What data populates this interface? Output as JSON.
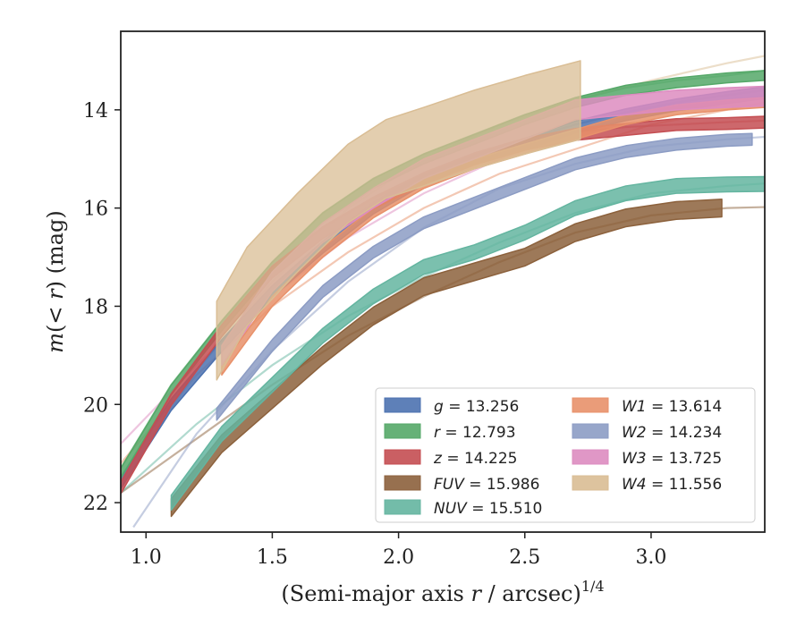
{
  "chart_data": {
    "type": "line",
    "xlabel_main": "(Semi-major axis ",
    "xlabel_var": "r",
    "xlabel_tail": " / arcsec)",
    "xlabel_sup": "1/4",
    "ylabel_m": "m",
    "ylabel_paren": "(< ",
    "ylabel_r": "r",
    "ylabel_tail": ") (mag)",
    "xlim": [
      0.9,
      3.45
    ],
    "ylim": [
      22.6,
      12.4
    ],
    "y_inverted": true,
    "x_ticks": [
      1.0,
      1.5,
      2.0,
      2.5,
      3.0
    ],
    "x_tick_labels": [
      "1.0",
      "1.5",
      "2.0",
      "2.5",
      "3.0"
    ],
    "y_ticks": [
      14,
      16,
      18,
      20,
      22
    ],
    "y_tick_labels": [
      "14",
      "16",
      "18",
      "20",
      "22"
    ],
    "legend_position": "lower-right",
    "series": [
      {
        "name": "g",
        "value": "= 13.256",
        "color": "#4c72b0",
        "width": 0.12,
        "x": [
          0.9,
          1.1,
          1.3,
          1.5,
          1.7,
          1.9,
          2.1,
          2.3,
          2.5,
          2.7,
          2.9,
          3.1,
          3.3,
          3.45
        ],
        "y": [
          21.6,
          20.0,
          18.8,
          17.7,
          16.8,
          16.0,
          15.4,
          15.0,
          14.7,
          14.35,
          14.1,
          13.9,
          13.75,
          13.65
        ],
        "model_y": [
          21.5,
          19.9,
          18.7,
          17.6,
          16.7,
          15.9,
          15.35,
          14.95,
          14.6,
          14.3,
          14.05,
          13.85,
          13.7,
          13.6
        ]
      },
      {
        "name": "r",
        "value": "= 12.793",
        "color": "#55a868",
        "width": 0.1,
        "x": [
          0.9,
          1.1,
          1.3,
          1.5,
          1.7,
          1.9,
          2.1,
          2.3,
          2.5,
          2.7,
          2.9,
          3.1,
          3.3,
          3.45
        ],
        "y": [
          21.4,
          19.7,
          18.4,
          17.2,
          16.2,
          15.5,
          15.0,
          14.6,
          14.2,
          13.85,
          13.6,
          13.45,
          13.35,
          13.3
        ],
        "model_y": [
          21.3,
          19.6,
          18.3,
          17.1,
          16.1,
          15.4,
          14.9,
          14.5,
          14.1,
          13.8,
          13.55,
          13.4,
          13.3,
          13.2
        ]
      },
      {
        "name": "z",
        "value": "= 14.225",
        "color": "#c44e52",
        "width": 0.12,
        "x": [
          0.9,
          1.1,
          1.3,
          1.5,
          1.7,
          1.9,
          2.1,
          2.3,
          2.5,
          2.7,
          2.9,
          3.1,
          3.3,
          3.45
        ],
        "y": [
          21.7,
          19.9,
          18.5,
          17.3,
          16.5,
          15.9,
          15.4,
          15.0,
          14.7,
          14.5,
          14.4,
          14.3,
          14.28,
          14.25
        ],
        "model_y": [
          21.6,
          19.8,
          18.4,
          17.2,
          16.4,
          15.8,
          15.35,
          14.95,
          14.65,
          14.45,
          14.35,
          14.3,
          14.25,
          14.22
        ]
      },
      {
        "name": "FUV",
        "value": "= 15.986",
        "color": "#8c613c",
        "width": 0.18,
        "x": [
          1.1,
          1.3,
          1.5,
          1.7,
          1.9,
          2.1,
          2.3,
          2.5,
          2.7,
          2.9,
          3.1,
          3.28
        ],
        "y": [
          22.1,
          20.8,
          19.9,
          19.0,
          18.2,
          17.6,
          17.3,
          17.0,
          16.5,
          16.2,
          16.05,
          16.0
        ],
        "model_x": [
          0.9,
          1.2,
          1.5,
          1.8,
          2.1,
          2.4,
          2.7,
          3.0,
          3.3,
          3.45
        ],
        "model_y": [
          21.8,
          20.7,
          19.6,
          18.6,
          17.8,
          17.1,
          16.5,
          16.15,
          16.0,
          15.98
        ]
      },
      {
        "name": "NUV",
        "value": "= 15.510",
        "color": "#64b5a0",
        "width": 0.15,
        "x": [
          1.1,
          1.3,
          1.5,
          1.7,
          1.9,
          2.1,
          2.3,
          2.5,
          2.7,
          2.9,
          3.1,
          3.3,
          3.45
        ],
        "y": [
          22.0,
          20.6,
          19.6,
          18.6,
          17.8,
          17.2,
          16.9,
          16.5,
          16.0,
          15.7,
          15.55,
          15.52,
          15.51
        ],
        "model_x": [
          0.9,
          1.2,
          1.5,
          1.8,
          2.1,
          2.4,
          2.7,
          3.0,
          3.3,
          3.45
        ],
        "model_y": [
          21.8,
          20.4,
          19.2,
          18.2,
          17.4,
          16.7,
          16.1,
          15.7,
          15.55,
          15.5
        ]
      },
      {
        "name": "W1",
        "value": "= 13.614",
        "color": "#e8916a",
        "width": 0.1,
        "x": [
          1.3,
          1.5,
          1.7,
          1.9,
          2.1,
          2.3,
          2.5,
          2.7,
          2.9,
          3.1,
          3.3,
          3.45
        ],
        "y": [
          19.3,
          17.9,
          16.9,
          16.1,
          15.5,
          15.1,
          14.8,
          14.5,
          14.2,
          14.0,
          13.9,
          13.85
        ],
        "model_x": [
          0.9,
          1.2,
          1.5,
          1.8,
          2.1,
          2.4,
          2.7,
          3.0,
          3.3,
          3.45
        ],
        "model_y": [
          21.2,
          19.4,
          18.0,
          16.9,
          16.0,
          15.3,
          14.8,
          14.3,
          14.0,
          13.85
        ]
      },
      {
        "name": "W2",
        "value": "= 14.234",
        "color": "#8c9cc4",
        "width": 0.12,
        "x": [
          1.28,
          1.5,
          1.7,
          1.9,
          2.1,
          2.3,
          2.5,
          2.7,
          2.9,
          3.1,
          3.3,
          3.4
        ],
        "y": [
          20.2,
          18.8,
          17.7,
          16.9,
          16.3,
          15.9,
          15.5,
          15.1,
          14.85,
          14.7,
          14.62,
          14.6
        ],
        "model_x": [
          0.95,
          1.2,
          1.5,
          1.8,
          2.1,
          2.4,
          2.7,
          3.0,
          3.3,
          3.45
        ],
        "model_y": [
          22.5,
          20.6,
          18.9,
          17.5,
          16.4,
          15.6,
          15.1,
          14.75,
          14.6,
          14.55
        ]
      },
      {
        "name": "W3",
        "value": "= 13.725",
        "color": "#dd8cc0",
        "width": 0.2,
        "x": [
          1.3,
          1.5,
          1.7,
          1.9,
          2.1,
          2.3,
          2.5,
          2.7,
          2.9,
          3.1,
          3.3,
          3.45
        ],
        "y": [
          19.0,
          17.5,
          16.5,
          15.8,
          15.2,
          14.8,
          14.4,
          14.0,
          13.9,
          13.8,
          13.75,
          13.72
        ],
        "model_x": [
          0.9,
          1.2,
          1.5,
          1.8,
          2.1,
          2.4,
          2.7,
          3.0,
          3.3,
          3.45
        ],
        "model_y": [
          20.8,
          19.2,
          17.8,
          16.6,
          15.7,
          15.0,
          14.45,
          14.05,
          13.8,
          13.72
        ]
      },
      {
        "name": "W4",
        "value": "= 11.556",
        "color": "#d9bd94",
        "width": 0.8,
        "x": [
          1.28,
          1.4,
          1.6,
          1.8,
          1.95,
          2.1,
          2.3,
          2.5,
          2.72
        ],
        "y": [
          18.7,
          17.6,
          16.5,
          15.5,
          15.0,
          14.75,
          14.4,
          14.1,
          13.8
        ],
        "model_x": [
          0.9,
          1.2,
          1.5,
          1.8,
          2.1,
          2.4,
          2.7,
          3.0,
          3.3,
          3.45
        ],
        "model_y": [
          21.7,
          19.3,
          17.5,
          16.0,
          15.0,
          14.3,
          13.8,
          13.4,
          13.05,
          12.9
        ]
      }
    ]
  }
}
